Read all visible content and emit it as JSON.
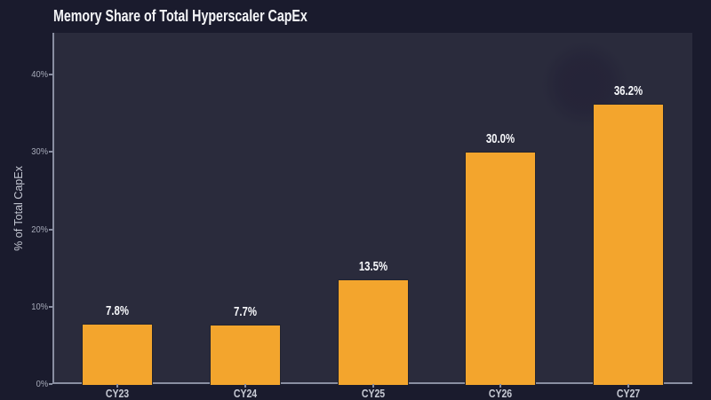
{
  "title": "Memory Share of Total Hyperscaler CapEx",
  "colors": {
    "background": "#1a1b2d",
    "plot_background": "#2a2b3c",
    "bar": "#f3a52d",
    "axis": "#898ea1",
    "title_text": "#f4f5f8",
    "tick_text": "#a7abb9",
    "category_text": "#c7cad4",
    "value_label_text": "#f7f8fb"
  },
  "chart_data": {
    "type": "bar",
    "title": "Memory Share of Total Hyperscaler CapEx",
    "xlabel": "",
    "ylabel": "% of Total CapEx",
    "categories": [
      "CY23",
      "CY24",
      "CY25",
      "CY26",
      "CY27"
    ],
    "values": [
      7.8,
      7.7,
      13.5,
      30.0,
      36.2
    ],
    "value_labels": [
      "7.8%",
      "7.7%",
      "13.5%",
      "30.0%",
      "36.2%"
    ],
    "yticks": [
      0,
      10,
      20,
      30,
      40
    ],
    "ytick_labels": [
      "0%",
      "10%",
      "20%",
      "30%",
      "40%"
    ],
    "ylim": [
      0,
      45.4
    ],
    "grid": false,
    "legend": false
  }
}
